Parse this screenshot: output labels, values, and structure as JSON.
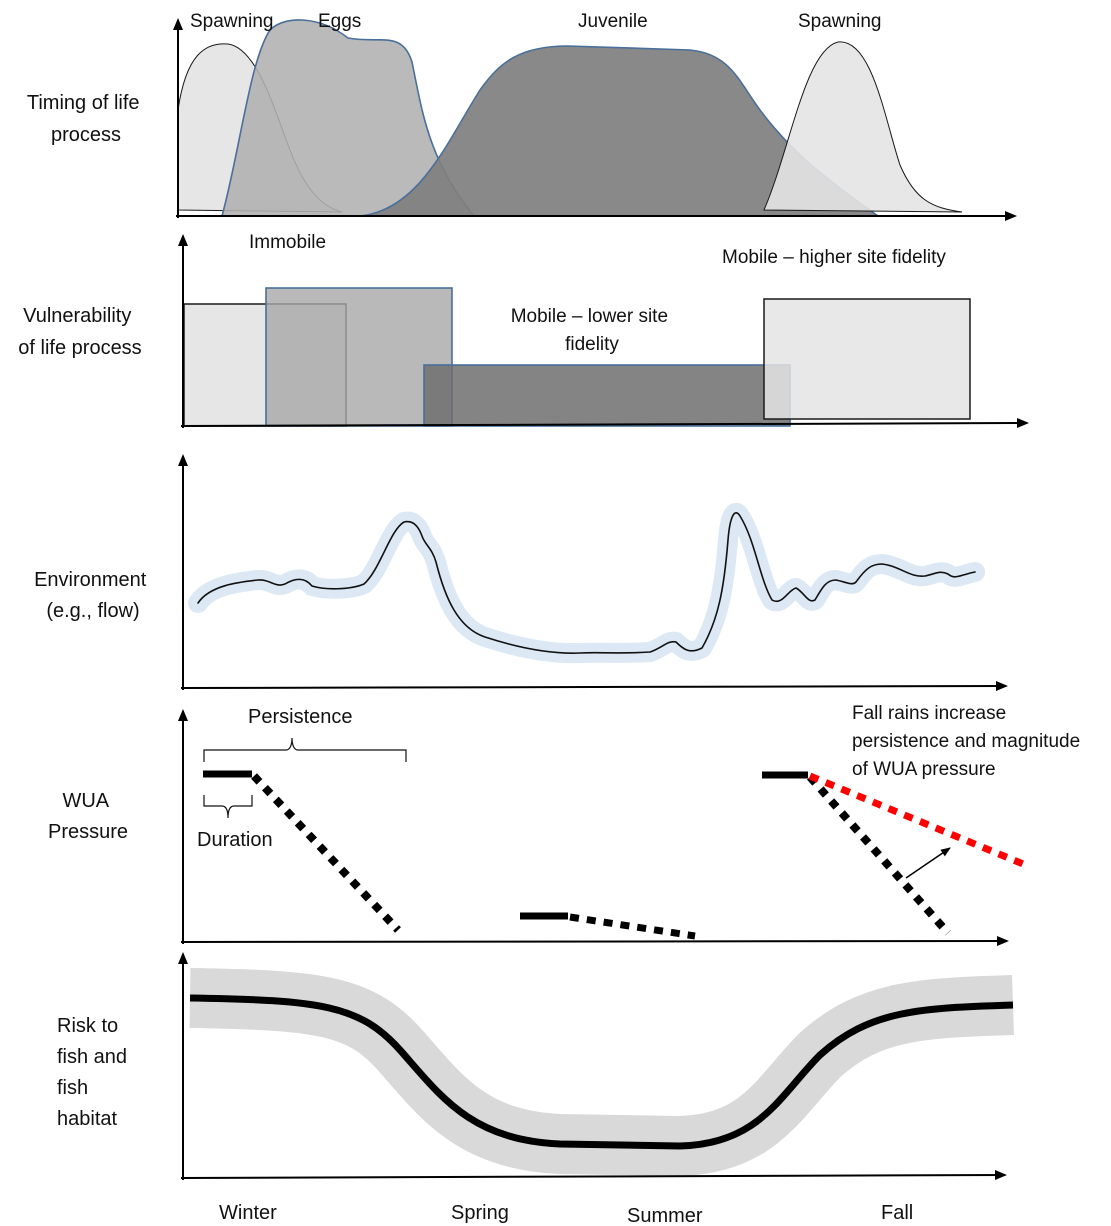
{
  "row_labels": {
    "timing": [
      "Timing of life",
      "process"
    ],
    "vulnerability": [
      "Vulnerability",
      "of life process"
    ],
    "environment": [
      "Environment",
      "(e.g., flow)"
    ],
    "pressure": [
      "WUA",
      "Pressure"
    ],
    "risk": [
      "Risk to",
      "fish and",
      "fish",
      "habitat"
    ]
  },
  "timing": {
    "spawning_early": "Spawning",
    "eggs": "Eggs",
    "juvenile": "Juvenile",
    "spawning_late": "Spawning"
  },
  "vulnerability": {
    "immobile": "Immobile",
    "mobile_lower": [
      "Mobile – lower site",
      "fidelity"
    ],
    "mobile_higher": "Mobile – higher site fidelity"
  },
  "pressure": {
    "persistence": "Persistence",
    "duration": "Duration",
    "fall_note": [
      "Fall rains increase",
      "persistence and magnitude",
      "of WUA  pressure"
    ]
  },
  "seasons": {
    "winter": "Winter",
    "spring": "Spring",
    "summer": "Summer",
    "fall": "Fall"
  },
  "colors": {
    "light_fill": "#e6e6e6",
    "mid_fill": "#b4b4b4",
    "dark_fill": "#7f7f7f",
    "outline_blue": "#4a6f9a",
    "flow_halo": "#dce8f4",
    "risk_band": "#d9d9d9",
    "fall_pressure": "#ff0000"
  }
}
